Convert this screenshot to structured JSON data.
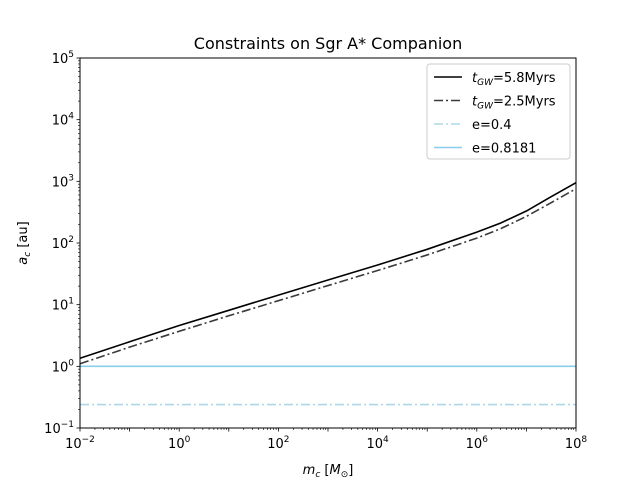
{
  "chart_data": {
    "type": "line",
    "title": "Constraints on Sgr A* Companion",
    "xlabel": {
      "var": "m",
      "sub": "c",
      "unit_open": " [",
      "unit_var": "M",
      "unit_sub": "⊙",
      "unit_close": "]"
    },
    "ylabel": {
      "var": "a",
      "sub": "c",
      "unit": " [au]"
    },
    "xscale": "log",
    "yscale": "log",
    "xlim": [
      0.01,
      100000000
    ],
    "ylim": [
      0.1,
      100000
    ],
    "x_ticks": [
      {
        "base": "10",
        "exp": "−2"
      },
      {
        "base": "10",
        "exp": "0"
      },
      {
        "base": "10",
        "exp": "2"
      },
      {
        "base": "10",
        "exp": "4"
      },
      {
        "base": "10",
        "exp": "6"
      },
      {
        "base": "10",
        "exp": "8"
      }
    ],
    "y_ticks": [
      {
        "base": "10",
        "exp": "−1"
      },
      {
        "base": "10",
        "exp": "0"
      },
      {
        "base": "10",
        "exp": "1"
      },
      {
        "base": "10",
        "exp": "2"
      },
      {
        "base": "10",
        "exp": "3"
      },
      {
        "base": "10",
        "exp": "4"
      },
      {
        "base": "10",
        "exp": "5"
      }
    ],
    "x_tick_values": [
      0.01,
      1,
      100,
      10000,
      1000000,
      100000000
    ],
    "y_tick_values": [
      0.1,
      1,
      10,
      100,
      1000,
      10000,
      100000
    ],
    "grid": false,
    "legend_position": "top-right",
    "series": [
      {
        "label_main": "t",
        "label_sub": "GW",
        "label_rest": "=5.8Myrs",
        "color": "#000000",
        "style": "solid",
        "x": [
          0.01,
          0.1,
          1,
          10,
          100,
          1000,
          10000,
          100000,
          1000000,
          3000000,
          10000000,
          30000000,
          100000000
        ],
        "y": [
          1.35,
          2.5,
          4.6,
          8.1,
          14.3,
          25.1,
          44.0,
          79.0,
          150.0,
          210.0,
          330.0,
          550.0,
          950.0
        ]
      },
      {
        "label_main": "t",
        "label_sub": "GW",
        "label_rest": "=2.5Myrs",
        "color": "#3a3a3a",
        "style": "dashdot",
        "x": [
          0.01,
          0.1,
          1,
          10,
          100,
          1000,
          10000,
          100000,
          1000000,
          3000000,
          10000000,
          30000000,
          100000000
        ],
        "y": [
          1.1,
          2.05,
          3.7,
          6.6,
          11.6,
          20.4,
          35.8,
          64.0,
          120.0,
          170.0,
          270.0,
          440.0,
          760.0
        ]
      },
      {
        "label_main": "e=0.4",
        "label_sub": "",
        "label_rest": "",
        "color": "#add8e6",
        "style": "dashdot",
        "x": [
          0.01,
          100000000
        ],
        "y": [
          0.24,
          0.24
        ]
      },
      {
        "label_main": "e=0.8181",
        "label_sub": "",
        "label_rest": "",
        "color": "#87ceeb",
        "style": "solid",
        "x": [
          0.01,
          100000000
        ],
        "y": [
          1.0,
          1.0
        ]
      }
    ]
  }
}
